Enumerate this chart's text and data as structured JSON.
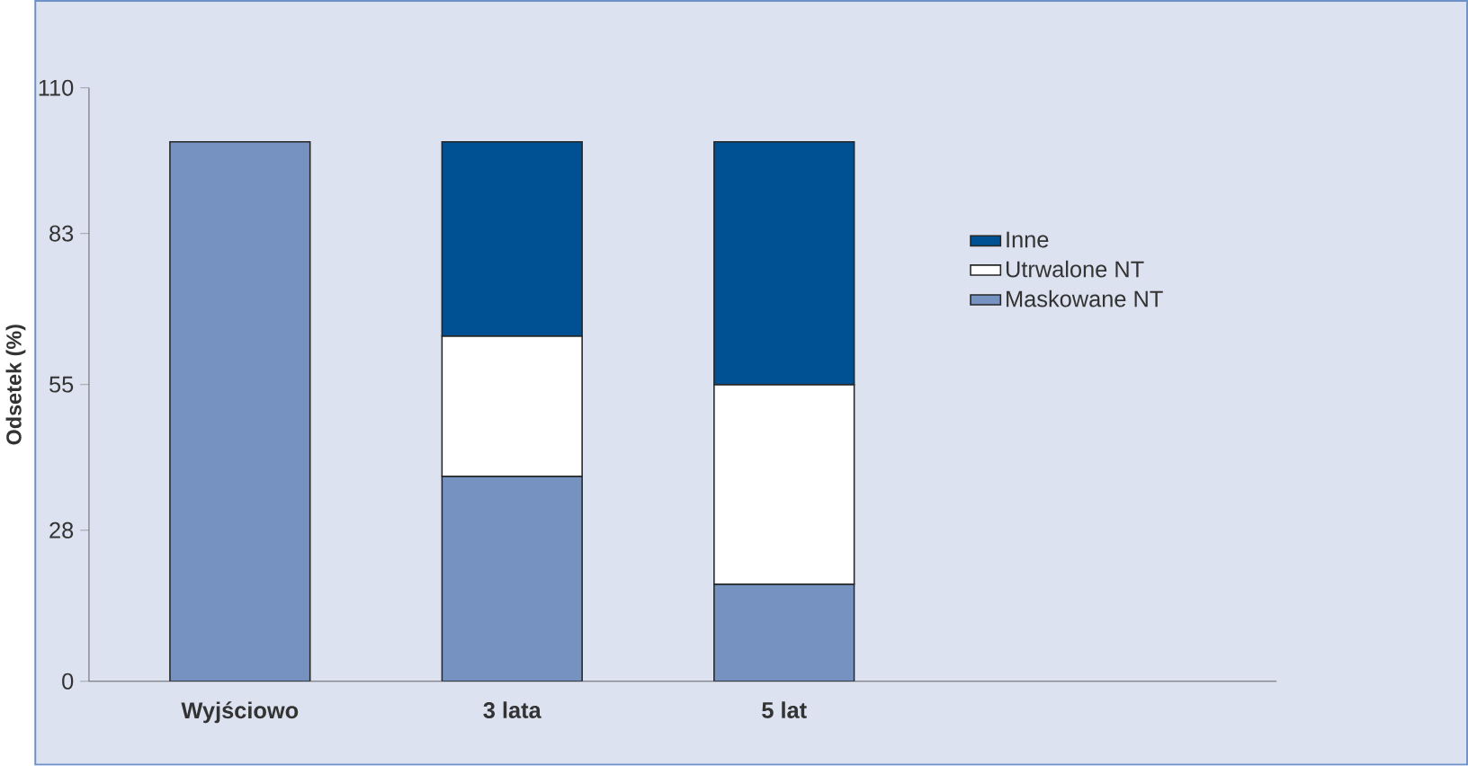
{
  "chart_data": {
    "type": "bar",
    "stacked": true,
    "ylabel": "Odsetek (%)",
    "categories": [
      "Wyjściowo",
      "3 lata",
      "5 lat"
    ],
    "series": [
      {
        "name": "Maskowane NT",
        "color": "#7592c0",
        "values": [
          100,
          38,
          18
        ]
      },
      {
        "name": "Utrwalone NT",
        "color": "#ffffff",
        "values": [
          null,
          26,
          37
        ]
      },
      {
        "name": "Inne",
        "color": "#005193",
        "values": [
          null,
          36,
          45
        ]
      }
    ],
    "ylim": [
      0,
      110
    ],
    "yticks": [
      0,
      28,
      55,
      83,
      110
    ],
    "grid": false,
    "legend": "right"
  }
}
